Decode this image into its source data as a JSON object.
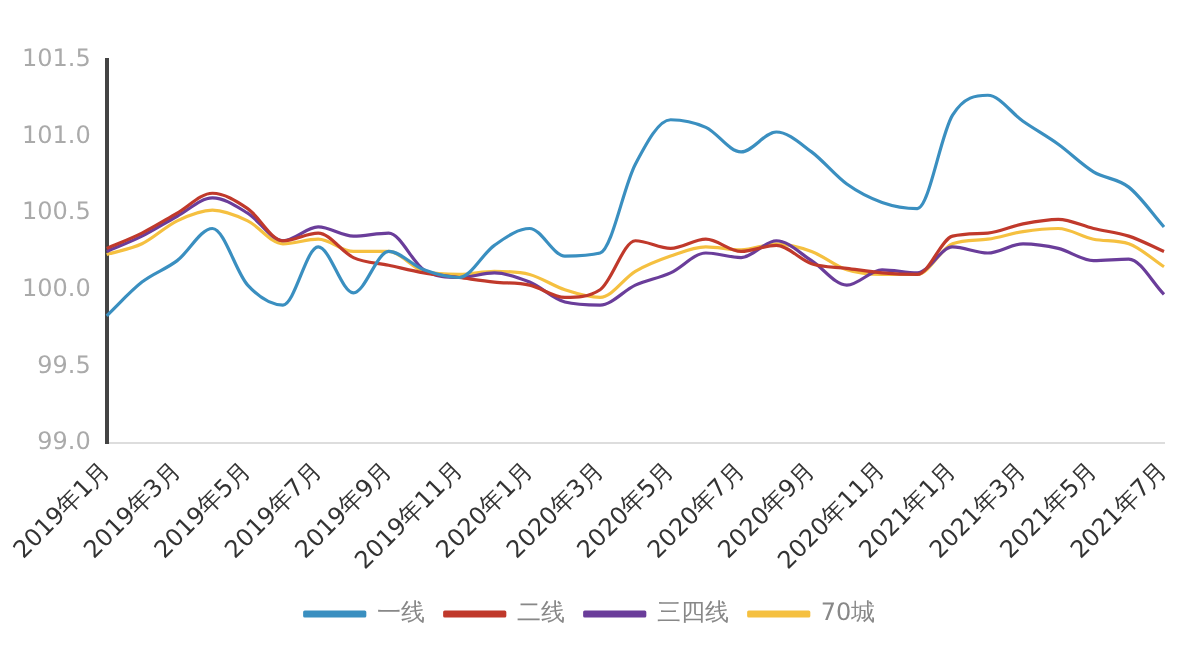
{
  "chart_data": {
    "type": "line",
    "categories": [
      "2019年1月",
      null,
      "2019年3月",
      null,
      "2019年5月",
      null,
      "2019年7月",
      null,
      "2019年9月",
      null,
      "2019年11月",
      null,
      "2020年1月",
      null,
      "2020年3月",
      null,
      "2020年5月",
      null,
      "2020年7月",
      null,
      "2020年9月",
      null,
      "2020年11月",
      null,
      "2021年1月",
      null,
      "2021年3月",
      null,
      "2021年5月",
      null,
      "2021年7月"
    ],
    "ylim": [
      99,
      101.5
    ],
    "yticks": [
      {
        "value": 99,
        "label": "99.0"
      },
      {
        "value": 99.5,
        "label": "99.5"
      },
      {
        "value": 100,
        "label": "100.0"
      },
      {
        "value": 100.5,
        "label": "100.5"
      },
      {
        "value": 101,
        "label": "101.0"
      },
      {
        "value": 101.5,
        "label": "101.5"
      }
    ],
    "grid": false,
    "legend": "bottom",
    "marker": "none",
    "line_style": "solid",
    "series": [
      {
        "name": "一线",
        "color": "#3a8fc0",
        "values": [
          99.83,
          100.05,
          100.19,
          100.4,
          100.03,
          99.9,
          100.28,
          99.98,
          100.25,
          100.13,
          100.08,
          100.29,
          100.4,
          100.22,
          100.24,
          100.82,
          101.11,
          101.06,
          100.9,
          101.03,
          100.9,
          100.69,
          100.57,
          100.53,
          101.14,
          101.27,
          101.1,
          100.95,
          100.77,
          100.67,
          100.41
        ]
      },
      {
        "name": "二线",
        "color": "#c0392b",
        "values": [
          100.27,
          100.37,
          100.5,
          100.63,
          100.53,
          100.32,
          100.37,
          100.21,
          100.16,
          100.11,
          100.08,
          100.05,
          100.03,
          99.95,
          100.0,
          100.32,
          100.27,
          100.33,
          100.25,
          100.29,
          100.17,
          100.14,
          100.11,
          100.1,
          100.35,
          100.37,
          100.43,
          100.46,
          100.4,
          100.35,
          100.25
        ]
      },
      {
        "name": "三四线",
        "color": "#6a3d9a",
        "values": [
          100.25,
          100.35,
          100.48,
          100.6,
          100.5,
          100.32,
          100.41,
          100.35,
          100.37,
          100.13,
          100.08,
          100.11,
          100.05,
          99.92,
          99.9,
          100.03,
          100.11,
          100.24,
          100.21,
          100.32,
          100.19,
          100.03,
          100.13,
          100.11,
          100.28,
          100.24,
          100.3,
          100.27,
          100.19,
          100.2,
          99.97
        ]
      },
      {
        "name": "70城",
        "color": "#f5c040",
        "values": [
          100.23,
          100.3,
          100.45,
          100.52,
          100.45,
          100.3,
          100.33,
          100.25,
          100.25,
          100.12,
          100.1,
          100.12,
          100.1,
          100.0,
          99.95,
          100.12,
          100.22,
          100.28,
          100.26,
          100.3,
          100.25,
          100.13,
          100.1,
          100.1,
          100.3,
          100.33,
          100.38,
          100.4,
          100.33,
          100.3,
          100.15
        ]
      }
    ]
  }
}
